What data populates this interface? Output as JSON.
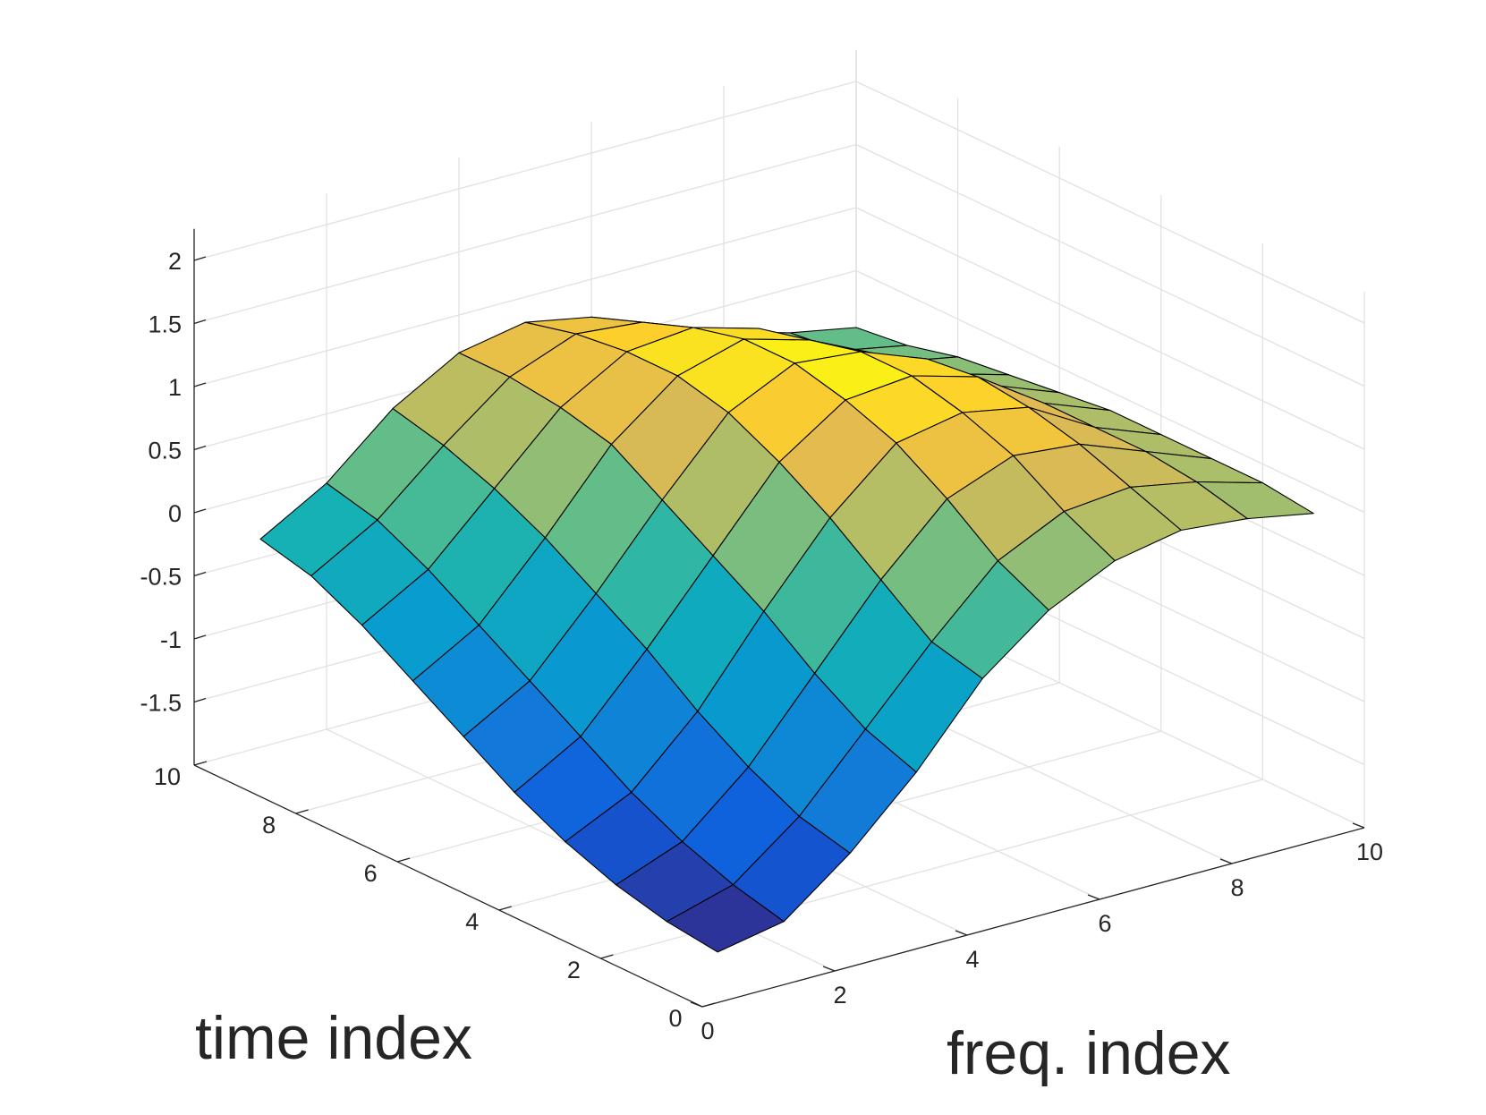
{
  "chart_data": {
    "type": "surface",
    "xlabel": "freq. index",
    "ylabel": "time index",
    "zlabel": "",
    "xlim": [
      0,
      10
    ],
    "ylim": [
      0,
      10
    ],
    "zlim": [
      -2,
      2.25
    ],
    "grid": true,
    "colormap": "parula",
    "x_ticks": [
      0,
      2,
      4,
      6,
      8,
      10
    ],
    "y_ticks": [
      0,
      2,
      4,
      6,
      8,
      10
    ],
    "z_ticks": [
      -1.5,
      -1,
      -0.5,
      0,
      0.5,
      1,
      1.5,
      2
    ],
    "x_tick_labels": [
      "0",
      "2",
      "4",
      "6",
      "8",
      "10"
    ],
    "y_tick_labels": [
      "0",
      "2",
      "4",
      "6",
      "8",
      "10"
    ],
    "z_tick_labels": [
      "-1.5",
      "-1",
      "-0.5",
      "0",
      "0.5",
      "1",
      "1.5",
      "2"
    ],
    "x": [
      1,
      2,
      3,
      4,
      5,
      6,
      7,
      8,
      9,
      10
    ],
    "y": [
      1,
      2,
      3,
      4,
      5,
      6,
      7,
      8,
      9,
      10
    ],
    "z": [
      [
        -1.9,
        -1.8,
        -1.4,
        -0.9,
        -0.3,
        0.1,
        0.35,
        0.45,
        0.4,
        0.3
      ],
      [
        -1.85,
        -1.7,
        -1.3,
        -0.75,
        -0.2,
        0.3,
        0.55,
        0.6,
        0.5,
        0.35
      ],
      [
        -1.75,
        -1.55,
        -1.1,
        -0.5,
        0.1,
        0.6,
        0.8,
        0.75,
        0.55,
        0.35
      ],
      [
        -1.6,
        -1.35,
        -0.85,
        -0.2,
        0.4,
        0.85,
        0.95,
        0.85,
        0.55,
        0.35
      ],
      [
        -1.4,
        -1.1,
        -0.55,
        0.05,
        0.65,
        1.0,
        1.05,
        0.9,
        0.55,
        0.35
      ],
      [
        -1.15,
        -0.85,
        -0.3,
        0.3,
        0.85,
        1.1,
        1.05,
        0.85,
        0.5,
        0.3
      ],
      [
        -0.9,
        -0.6,
        -0.05,
        0.55,
        0.95,
        1.1,
        0.95,
        0.7,
        0.4,
        0.25
      ],
      [
        -0.65,
        -0.35,
        0.15,
        0.65,
        0.95,
        1.0,
        0.85,
        0.55,
        0.3,
        0.2
      ],
      [
        -0.45,
        -0.15,
        0.3,
        0.7,
        0.9,
        0.85,
        0.65,
        0.4,
        0.2,
        0.1
      ],
      [
        -0.35,
        -0.05,
        0.4,
        0.7,
        0.8,
        0.7,
        0.5,
        0.3,
        0.15,
        0.05
      ]
    ]
  }
}
